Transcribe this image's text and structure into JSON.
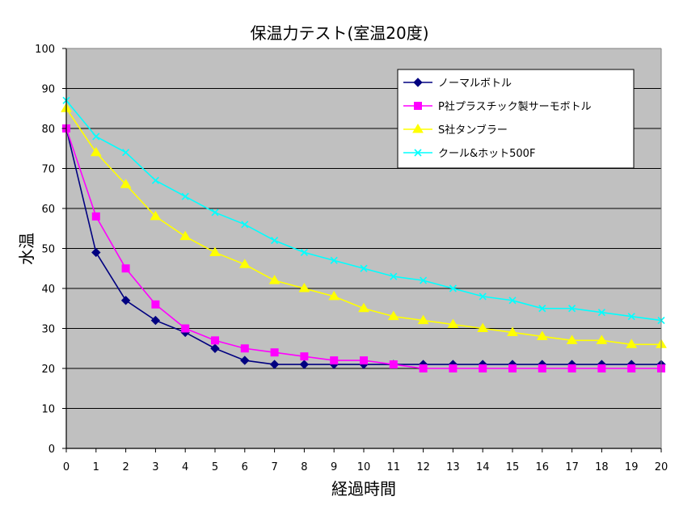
{
  "chart_data": {
    "type": "line",
    "title": "保温力テスト(室温20度)",
    "xlabel": "経過時間",
    "ylabel": "水温",
    "x": [
      0,
      1,
      2,
      3,
      4,
      5,
      6,
      7,
      8,
      9,
      10,
      11,
      12,
      13,
      14,
      15,
      16,
      17,
      18,
      19,
      20
    ],
    "xlim": [
      0,
      20
    ],
    "ylim": [
      0,
      100
    ],
    "yticks": [
      0,
      10,
      20,
      30,
      40,
      50,
      60,
      70,
      80,
      90,
      100
    ],
    "grid": true,
    "legend_position": "top-right",
    "series": [
      {
        "name": "ノーマルボトル",
        "color": "#000080",
        "marker": "diamond",
        "values": [
          80,
          49,
          37,
          32,
          29,
          25,
          22,
          21,
          21,
          21,
          21,
          21,
          21,
          21,
          21,
          21,
          21,
          21,
          21,
          21,
          21
        ]
      },
      {
        "name": "P社プラスチック製サーモボトル",
        "color": "#FF00FF",
        "marker": "square",
        "values": [
          80,
          58,
          45,
          36,
          30,
          27,
          25,
          24,
          23,
          22,
          22,
          21,
          20,
          20,
          20,
          20,
          20,
          20,
          20,
          20,
          20
        ]
      },
      {
        "name": "S社タンブラー",
        "color": "#FFFF00",
        "marker": "triangle",
        "values": [
          85,
          74,
          66,
          58,
          53,
          49,
          46,
          42,
          40,
          38,
          35,
          33,
          32,
          31,
          30,
          29,
          28,
          27,
          27,
          26,
          26
        ]
      },
      {
        "name": "クール&ホット500F",
        "color": "#00FFFF",
        "marker": "x",
        "values": [
          87,
          78,
          74,
          67,
          63,
          59,
          56,
          52,
          49,
          47,
          45,
          43,
          42,
          40,
          38,
          37,
          35,
          35,
          34,
          33,
          32
        ]
      }
    ]
  },
  "colors": {
    "plot_background": "#C0C0C0",
    "gridline": "#000000",
    "legend_background": "#FFFFFF"
  }
}
